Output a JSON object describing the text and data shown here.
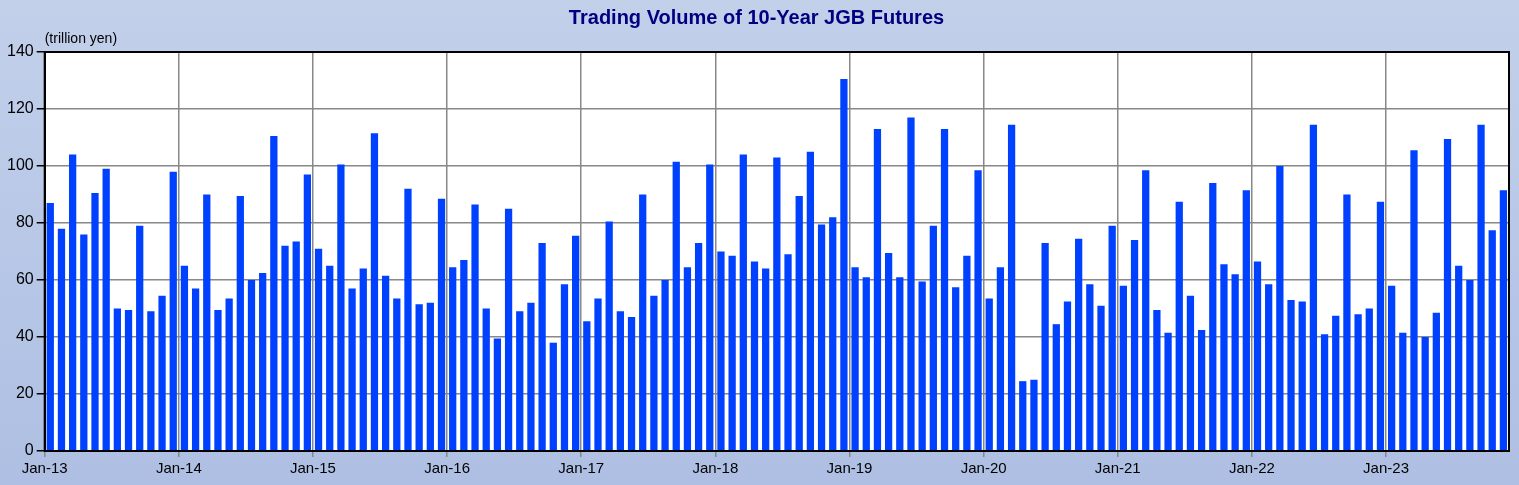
{
  "chart_data": {
    "type": "bar",
    "title": "Trading Volume of 10-Year JGB Futures",
    "ylabel": "(trillion yen)",
    "categories": [
      "Jan-13",
      null,
      null,
      null,
      null,
      null,
      null,
      null,
      null,
      null,
      null,
      null,
      "Jan-14",
      null,
      null,
      null,
      null,
      null,
      null,
      null,
      null,
      null,
      null,
      null,
      "Jan-15",
      null,
      null,
      null,
      null,
      null,
      null,
      null,
      null,
      null,
      null,
      null,
      "Jan-16",
      null,
      null,
      null,
      null,
      null,
      null,
      null,
      null,
      null,
      null,
      null,
      "Jan-17",
      null,
      null,
      null,
      null,
      null,
      null,
      null,
      null,
      null,
      null,
      null,
      "Jan-18",
      null,
      null,
      null,
      null,
      null,
      null,
      null,
      null,
      null,
      null,
      null,
      "Jan-19",
      null,
      null,
      null,
      null,
      null,
      null,
      null,
      null,
      null,
      null,
      null,
      "Jan-20",
      null,
      null,
      null,
      null,
      null,
      null,
      null,
      null,
      null,
      null,
      null,
      "Jan-21",
      null,
      null,
      null,
      null,
      null,
      null,
      null,
      null,
      null,
      null,
      null,
      "Jan-22",
      null,
      null,
      null,
      null,
      null,
      null,
      null,
      null,
      null,
      null,
      null,
      "Jan-23",
      null,
      null,
      null,
      null,
      null,
      null,
      null,
      null,
      null,
      null
    ],
    "values": [
      87,
      78,
      104,
      76,
      90.5,
      99,
      50,
      49.5,
      79,
      49,
      54.5,
      98,
      65,
      57,
      90,
      49.5,
      53.5,
      89.5,
      60,
      62.5,
      110.5,
      72,
      73.5,
      97,
      71,
      65,
      100.5,
      57,
      64,
      111.5,
      61.5,
      53.5,
      92,
      51.5,
      52,
      88.5,
      64.5,
      67,
      86.5,
      50,
      39.5,
      85,
      49,
      52,
      73,
      38,
      58.5,
      75.5,
      45.5,
      53.5,
      80.5,
      49,
      47,
      90,
      54.5,
      60,
      101.5,
      64.5,
      73,
      100.5,
      70,
      68.5,
      104,
      66.5,
      64,
      103,
      69,
      89.5,
      105,
      79.5,
      82,
      130.5,
      64.5,
      61,
      113,
      69.5,
      61,
      117,
      59.5,
      79,
      113,
      57.5,
      68.5,
      98.5,
      53.5,
      64.5,
      114.5,
      24.5,
      25,
      73,
      44.5,
      52.5,
      74.5,
      58.5,
      51,
      79,
      58,
      74,
      98.5,
      49.5,
      41.5,
      87.5,
      54.5,
      42.5,
      94,
      65.5,
      62,
      91.5,
      66.5,
      58.5,
      100,
      53,
      52.5,
      114.5,
      41,
      47.5,
      90,
      48,
      50,
      87.5,
      58,
      41.5,
      105.5,
      40,
      48.5,
      109.5,
      65,
      60,
      114.5,
      77.5,
      91.5
    ],
    "color": "#0040ff",
    "ylim": [
      0,
      140
    ],
    "yticks": [
      0,
      20,
      40,
      60,
      80,
      100,
      120,
      140
    ],
    "grid": true
  }
}
